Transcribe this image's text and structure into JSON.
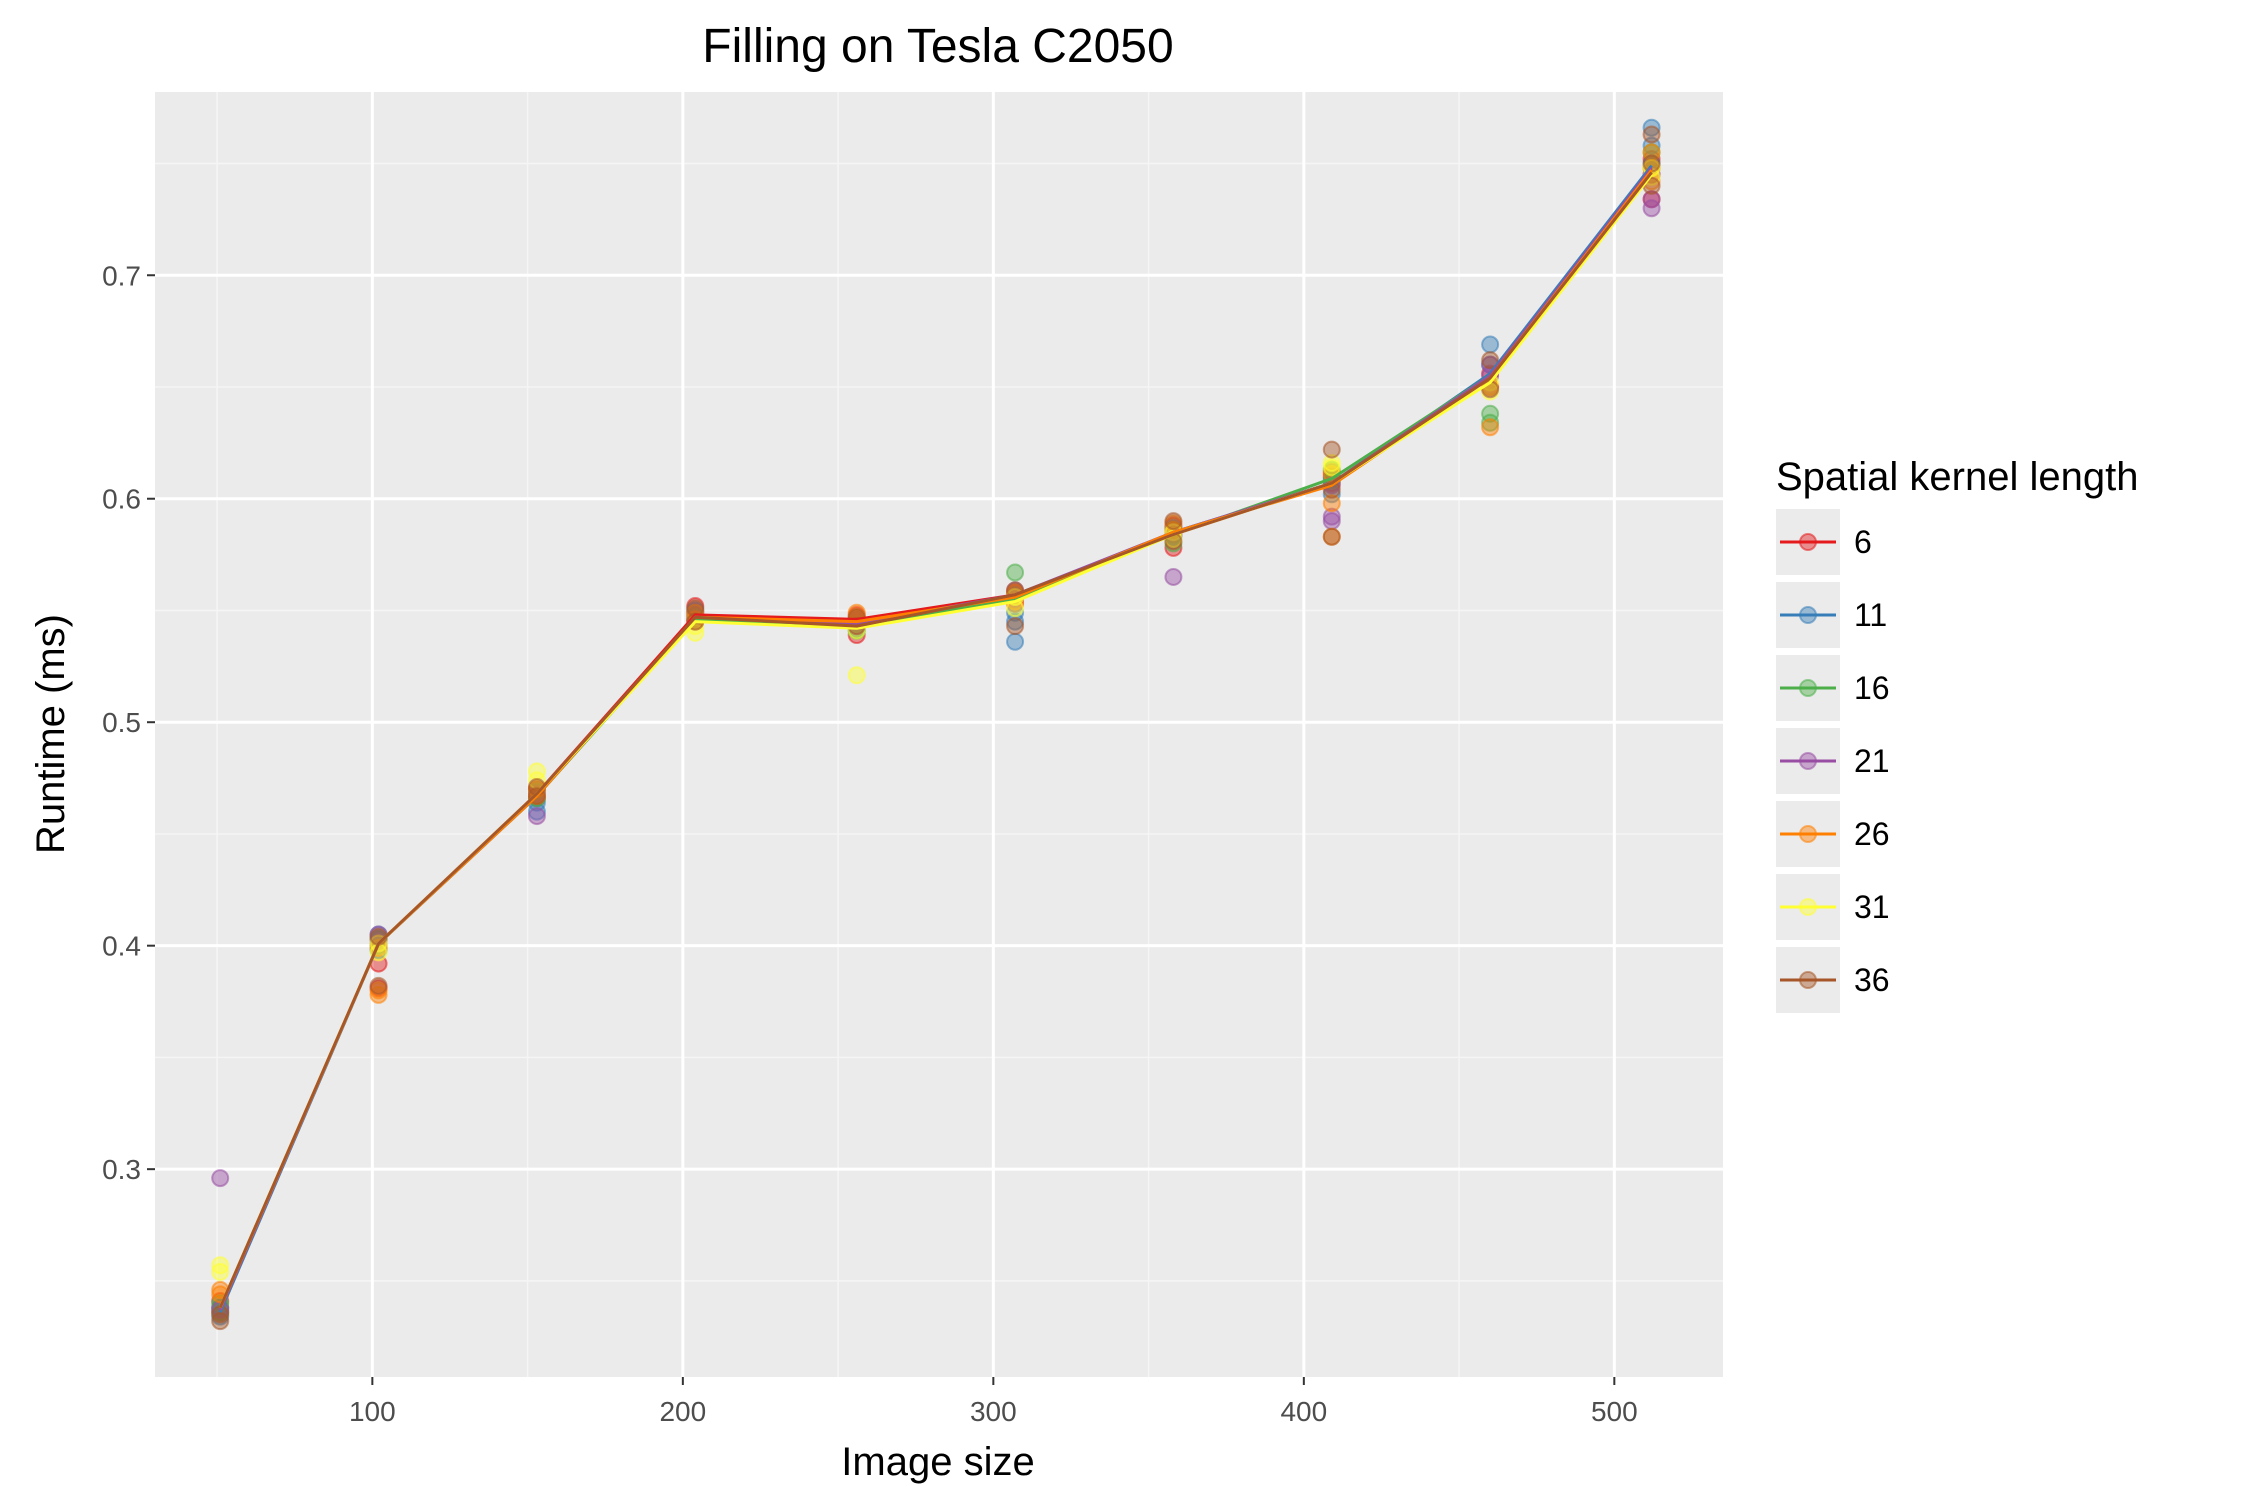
{
  "colors": {
    "panel_background": "#ebebeb",
    "grid_major": "#ffffff",
    "grid_minor": "#f5f5f5"
  },
  "chart_data": {
    "type": "line",
    "title": "Filling on Tesla C2050",
    "xlabel": "Image size",
    "ylabel": "Runtime (ms)",
    "xlim": [
      30,
      535
    ],
    "ylim": [
      0.207,
      0.782
    ],
    "x_ticks": [
      100,
      200,
      300,
      400,
      500
    ],
    "x_tick_labels": [
      "100",
      "200",
      "300",
      "400",
      "500"
    ],
    "y_ticks": [
      0.3,
      0.4,
      0.5,
      0.6,
      0.7
    ],
    "y_tick_labels": [
      "0.3",
      "0.4",
      "0.5",
      "0.6",
      "0.7"
    ],
    "grid": true,
    "legend": {
      "title": "Spatial kernel length",
      "position": "right"
    },
    "x": [
      51,
      102,
      153,
      204,
      256,
      307,
      358,
      409,
      460,
      512
    ],
    "series": [
      {
        "name": "6",
        "color": "#e41a1c",
        "values": [
          0.237,
          0.401,
          0.468,
          0.548,
          0.546,
          0.557,
          0.584,
          0.607,
          0.655,
          0.747
        ],
        "points": [
          [
            51,
            0.238
          ],
          [
            51,
            0.236
          ],
          [
            51,
            0.241
          ],
          [
            102,
            0.392
          ],
          [
            102,
            0.381
          ],
          [
            102,
            0.403
          ],
          [
            153,
            0.47
          ],
          [
            153,
            0.466
          ],
          [
            204,
            0.552
          ],
          [
            204,
            0.548
          ],
          [
            204,
            0.545
          ],
          [
            256,
            0.539
          ],
          [
            256,
            0.545
          ],
          [
            256,
            0.548
          ],
          [
            307,
            0.558
          ],
          [
            307,
            0.553
          ],
          [
            358,
            0.578
          ],
          [
            358,
            0.584
          ],
          [
            358,
            0.588
          ],
          [
            409,
            0.612
          ],
          [
            409,
            0.607
          ],
          [
            409,
            0.61
          ],
          [
            460,
            0.656
          ],
          [
            460,
            0.65
          ],
          [
            512,
            0.734
          ],
          [
            512,
            0.745
          ],
          [
            512,
            0.752
          ]
        ]
      },
      {
        "name": "11",
        "color": "#377eb8",
        "values": [
          0.236,
          0.401,
          0.467,
          0.547,
          0.544,
          0.556,
          0.585,
          0.607,
          0.656,
          0.749
        ],
        "points": [
          [
            51,
            0.234
          ],
          [
            51,
            0.238
          ],
          [
            102,
            0.405
          ],
          [
            102,
            0.398
          ],
          [
            153,
            0.46
          ],
          [
            153,
            0.464
          ],
          [
            204,
            0.549
          ],
          [
            204,
            0.546
          ],
          [
            256,
            0.541
          ],
          [
            256,
            0.546
          ],
          [
            307,
            0.536
          ],
          [
            307,
            0.545
          ],
          [
            307,
            0.549
          ],
          [
            358,
            0.583
          ],
          [
            358,
            0.587
          ],
          [
            409,
            0.602
          ],
          [
            409,
            0.609
          ],
          [
            460,
            0.669
          ],
          [
            460,
            0.66
          ],
          [
            512,
            0.766
          ],
          [
            512,
            0.758
          ],
          [
            512,
            0.75
          ]
        ]
      },
      {
        "name": "16",
        "color": "#4daf4a",
        "values": [
          0.237,
          0.401,
          0.467,
          0.546,
          0.543,
          0.555,
          0.584,
          0.609,
          0.655,
          0.747
        ],
        "points": [
          [
            51,
            0.24
          ],
          [
            51,
            0.236
          ],
          [
            102,
            0.4
          ],
          [
            102,
            0.403
          ],
          [
            153,
            0.466
          ],
          [
            153,
            0.469
          ],
          [
            204,
            0.547
          ],
          [
            204,
            0.55
          ],
          [
            256,
            0.544
          ],
          [
            256,
            0.541
          ],
          [
            307,
            0.567
          ],
          [
            307,
            0.557
          ],
          [
            358,
            0.58
          ],
          [
            358,
            0.586
          ],
          [
            409,
            0.608
          ],
          [
            409,
            0.613
          ],
          [
            460,
            0.638
          ],
          [
            460,
            0.634
          ],
          [
            512,
            0.755
          ],
          [
            512,
            0.748
          ]
        ]
      },
      {
        "name": "21",
        "color": "#984ea3",
        "values": [
          0.237,
          0.401,
          0.467,
          0.547,
          0.544,
          0.557,
          0.585,
          0.607,
          0.655,
          0.748
        ],
        "points": [
          [
            51,
            0.296
          ],
          [
            51,
            0.237
          ],
          [
            102,
            0.405
          ],
          [
            102,
            0.401
          ],
          [
            153,
            0.458
          ],
          [
            153,
            0.468
          ],
          [
            204,
            0.55
          ],
          [
            204,
            0.546
          ],
          [
            256,
            0.543
          ],
          [
            256,
            0.546
          ],
          [
            307,
            0.559
          ],
          [
            307,
            0.555
          ],
          [
            358,
            0.565
          ],
          [
            358,
            0.585
          ],
          [
            409,
            0.59
          ],
          [
            409,
            0.592
          ],
          [
            409,
            0.606
          ],
          [
            460,
            0.655
          ],
          [
            460,
            0.66
          ],
          [
            512,
            0.73
          ],
          [
            512,
            0.734
          ],
          [
            512,
            0.745
          ]
        ]
      },
      {
        "name": "26",
        "color": "#ff7f00",
        "values": [
          0.238,
          0.401,
          0.467,
          0.547,
          0.545,
          0.556,
          0.585,
          0.606,
          0.654,
          0.747
        ],
        "points": [
          [
            51,
            0.246
          ],
          [
            51,
            0.244
          ],
          [
            102,
            0.378
          ],
          [
            102,
            0.38
          ],
          [
            102,
            0.399
          ],
          [
            153,
            0.467
          ],
          [
            153,
            0.47
          ],
          [
            204,
            0.546
          ],
          [
            204,
            0.549
          ],
          [
            256,
            0.549
          ],
          [
            256,
            0.547
          ],
          [
            307,
            0.554
          ],
          [
            307,
            0.558
          ],
          [
            358,
            0.589
          ],
          [
            358,
            0.586
          ],
          [
            409,
            0.583
          ],
          [
            409,
            0.598
          ],
          [
            409,
            0.611
          ],
          [
            460,
            0.632
          ],
          [
            460,
            0.65
          ],
          [
            512,
            0.742
          ],
          [
            512,
            0.748
          ],
          [
            512,
            0.755
          ]
        ]
      },
      {
        "name": "31",
        "color": "#ffff33",
        "values": [
          0.238,
          0.401,
          0.468,
          0.545,
          0.542,
          0.554,
          0.584,
          0.607,
          0.652,
          0.745
        ],
        "points": [
          [
            51,
            0.257
          ],
          [
            51,
            0.254
          ],
          [
            102,
            0.401
          ],
          [
            102,
            0.397
          ],
          [
            153,
            0.478
          ],
          [
            153,
            0.474
          ],
          [
            204,
            0.54
          ],
          [
            204,
            0.543
          ],
          [
            256,
            0.521
          ],
          [
            256,
            0.541
          ],
          [
            307,
            0.551
          ],
          [
            307,
            0.556
          ],
          [
            358,
            0.582
          ],
          [
            358,
            0.585
          ],
          [
            409,
            0.614
          ],
          [
            409,
            0.616
          ],
          [
            460,
            0.648
          ],
          [
            460,
            0.652
          ],
          [
            512,
            0.748
          ],
          [
            512,
            0.744
          ]
        ]
      },
      {
        "name": "36",
        "color": "#a65628",
        "values": [
          0.238,
          0.401,
          0.468,
          0.547,
          0.543,
          0.557,
          0.584,
          0.607,
          0.654,
          0.746
        ],
        "points": [
          [
            51,
            0.232
          ],
          [
            51,
            0.235
          ],
          [
            102,
            0.382
          ],
          [
            102,
            0.404
          ],
          [
            153,
            0.471
          ],
          [
            153,
            0.467
          ],
          [
            204,
            0.551
          ],
          [
            204,
            0.545
          ],
          [
            256,
            0.543
          ],
          [
            256,
            0.547
          ],
          [
            307,
            0.543
          ],
          [
            307,
            0.559
          ],
          [
            358,
            0.59
          ],
          [
            358,
            0.581
          ],
          [
            409,
            0.622
          ],
          [
            409,
            0.583
          ],
          [
            409,
            0.604
          ],
          [
            460,
            0.662
          ],
          [
            460,
            0.649
          ],
          [
            512,
            0.763
          ],
          [
            512,
            0.74
          ],
          [
            512,
            0.75
          ]
        ]
      }
    ]
  }
}
